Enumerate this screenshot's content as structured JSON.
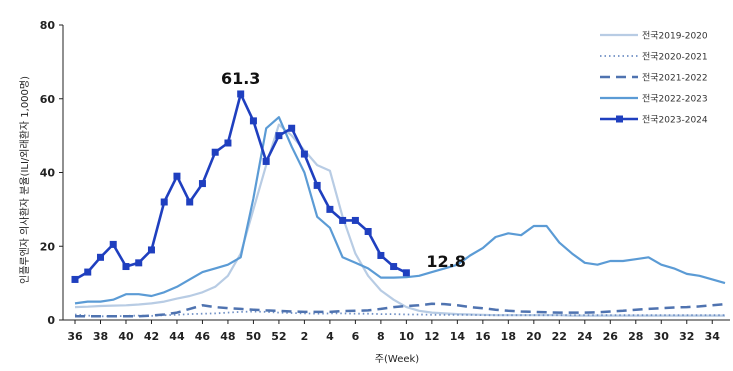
{
  "chart_data": {
    "type": "line",
    "ylabel": "인플루엔자 의사환자 분율(ILI/외래환자 1,000명)",
    "xlabel": "주(Week)",
    "ylim": [
      0,
      80
    ],
    "yticks": [
      0,
      20,
      40,
      60,
      80
    ],
    "xticks": [
      "36",
      "38",
      "40",
      "42",
      "44",
      "46",
      "48",
      "50",
      "52",
      "2",
      "4",
      "6",
      "8",
      "10",
      "12",
      "14",
      "16",
      "18",
      "20",
      "22",
      "24",
      "26",
      "28",
      "30",
      "32",
      "34"
    ],
    "weeks": [
      36,
      37,
      38,
      39,
      40,
      41,
      42,
      43,
      44,
      45,
      46,
      47,
      48,
      49,
      50,
      51,
      52,
      1,
      2,
      3,
      4,
      5,
      6,
      7,
      8,
      9,
      10,
      11,
      12,
      13,
      14,
      15,
      16,
      17,
      18,
      19,
      20,
      21,
      22,
      23,
      24,
      25,
      26,
      27,
      28,
      29,
      30,
      31,
      32,
      33,
      34,
      35
    ],
    "legend_position": "top-right",
    "annotations": [
      {
        "text": "61.3",
        "x": 49,
        "y": 61.3
      },
      {
        "text": "12.8",
        "x": 10,
        "y": 12.8
      }
    ],
    "series": [
      {
        "name": "전국2019-2020",
        "color": "#b8cce4",
        "style": "solid",
        "values": [
          3.5,
          3.6,
          3.8,
          3.9,
          4.0,
          4.2,
          4.5,
          5.0,
          5.8,
          6.5,
          7.5,
          9.0,
          12.0,
          18.0,
          30.0,
          42.0,
          53.0,
          50.0,
          46.0,
          42.0,
          40.5,
          28.0,
          18.0,
          12.0,
          8.0,
          5.5,
          3.5,
          2.5,
          2.0,
          1.8,
          1.6,
          1.5,
          1.4,
          1.3,
          1.3,
          1.3,
          1.3,
          1.3,
          1.3,
          1.2,
          1.2,
          1.2,
          1.2,
          1.2,
          1.2,
          1.2,
          1.2,
          1.2,
          1.2,
          1.2,
          1.2,
          1.2
        ]
      },
      {
        "name": "전국2020-2021",
        "color": "#6f8fc4",
        "style": "dotted",
        "values": [
          1.5,
          1.2,
          1.0,
          1.0,
          1.1,
          1.2,
          1.1,
          1.3,
          1.4,
          1.6,
          1.7,
          1.8,
          2.0,
          2.2,
          2.3,
          2.2,
          2.0,
          1.9,
          1.8,
          1.7,
          1.8,
          1.8,
          1.7,
          1.7,
          1.6,
          1.6,
          1.5,
          1.5,
          1.4,
          1.4,
          1.4,
          1.4,
          1.3,
          1.3,
          1.3,
          1.3,
          1.3,
          1.3,
          1.3,
          1.3,
          1.3,
          1.3,
          1.3,
          1.3,
          1.3,
          1.3,
          1.3,
          1.3,
          1.3,
          1.3,
          1.3,
          1.3
        ]
      },
      {
        "name": "전국2021-2022",
        "color": "#4f73b0",
        "style": "dashed",
        "values": [
          1.0,
          1.0,
          1.0,
          1.0,
          1.0,
          1.0,
          1.2,
          1.5,
          2.0,
          3.0,
          4.0,
          3.5,
          3.2,
          3.0,
          2.8,
          2.6,
          2.5,
          2.3,
          2.2,
          2.2,
          2.2,
          2.4,
          2.5,
          2.6,
          3.0,
          3.5,
          3.8,
          4.0,
          4.4,
          4.3,
          4.0,
          3.5,
          3.2,
          2.8,
          2.5,
          2.3,
          2.2,
          2.1,
          2.0,
          2.0,
          2.0,
          2.1,
          2.3,
          2.5,
          2.8,
          3.0,
          3.2,
          3.4,
          3.5,
          3.7,
          4.0,
          4.3
        ]
      },
      {
        "name": "전국2022-2023",
        "color": "#5b9bd5",
        "style": "solid",
        "values": [
          4.5,
          5.0,
          5.0,
          5.5,
          7.0,
          7.0,
          6.5,
          7.5,
          9.0,
          11.0,
          13.0,
          14.0,
          15.0,
          17.0,
          33.0,
          52.0,
          55.0,
          47.0,
          40.0,
          28.0,
          25.0,
          17.0,
          15.5,
          14.0,
          11.5,
          11.5,
          11.6,
          12.0,
          13.0,
          14.0,
          15.0,
          17.5,
          19.5,
          22.5,
          23.5,
          23.0,
          25.5,
          25.5,
          21.0,
          18.0,
          15.5,
          15.0,
          16.0,
          16.0,
          16.5,
          17.0,
          15.0,
          14.0,
          12.5,
          12.0,
          11.0,
          10.0
        ]
      },
      {
        "name": "전국2023-2024",
        "color": "#1f3fbf",
        "style": "solid-markers",
        "values": [
          11.0,
          13.0,
          17.0,
          20.5,
          14.5,
          15.5,
          19.0,
          32.0,
          39.0,
          32.0,
          37.0,
          45.5,
          48.0,
          61.3,
          54.0,
          43.0,
          50.0,
          52.0,
          45.0,
          36.5,
          30.0,
          27.0,
          27.0,
          24.0,
          17.5,
          14.5,
          12.8
        ]
      }
    ]
  }
}
